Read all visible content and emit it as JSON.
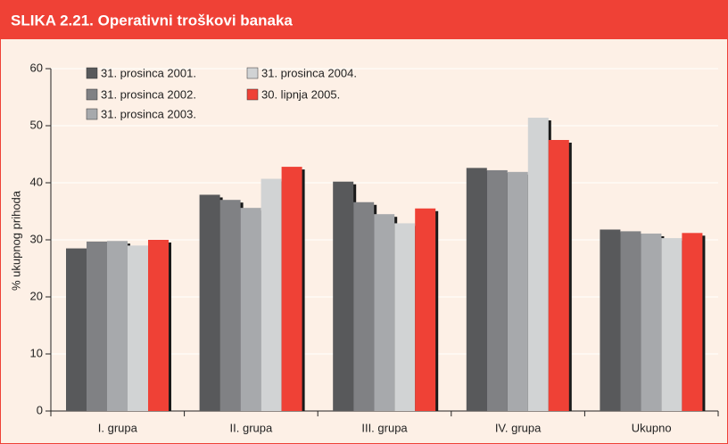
{
  "chart_data": {
    "type": "bar",
    "title": "SLIKA 2.21. Operativni troškovi banaka",
    "y_label": "% ukupnog prihoda",
    "categories": [
      "I. grupa",
      "II. grupa",
      "III. grupa",
      "IV. grupa",
      "Ukupno"
    ],
    "series": [
      {
        "name": "31. prosinca 2001.",
        "color": "#58595b",
        "values": [
          28.5,
          37.9,
          40.2,
          42.6,
          31.8
        ]
      },
      {
        "name": "31. prosinca 2002.",
        "color": "#808184",
        "values": [
          29.7,
          37.0,
          36.6,
          42.2,
          31.5
        ]
      },
      {
        "name": "31. prosinca 2003.",
        "color": "#a7a9ac",
        "values": [
          29.8,
          35.6,
          34.5,
          41.9,
          31.1
        ]
      },
      {
        "name": "31. prosinca 2004.",
        "color": "#d1d3d4",
        "values": [
          29.0,
          40.7,
          32.9,
          51.4,
          30.3
        ]
      },
      {
        "name": "30. lipnja 2005.",
        "color": "#ef4136",
        "values": [
          30.0,
          42.8,
          35.5,
          47.5,
          31.2
        ]
      }
    ],
    "ylim": [
      0,
      60
    ],
    "yticks": [
      0,
      10,
      20,
      30,
      40,
      50,
      60
    ],
    "grid": true
  }
}
